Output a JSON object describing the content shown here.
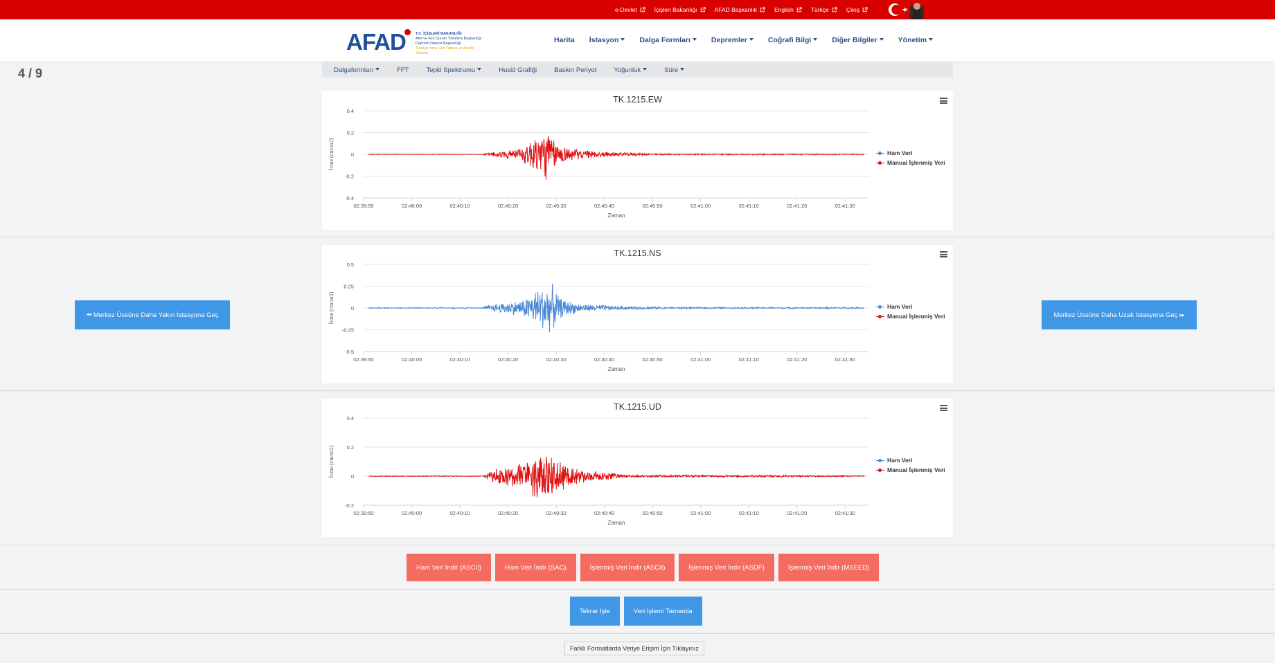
{
  "topbar": {
    "links": [
      "e-Devlet",
      "İçişleri Bakanlığı",
      "AFAD Başkanlık",
      "English",
      "Türkçe",
      "Çıkış"
    ]
  },
  "logo": {
    "name": "AFAD",
    "line1": "T.C. İÇİŞLERİ BAKANLIĞI",
    "line2": "Afet ve Acil Durum Yönetimi Başkanlığı",
    "line3": "Deprem Dairesi Başkanlığı",
    "line4": "Türkiye İvme Veri Tabanı ve Analiz Sistemi"
  },
  "nav": {
    "items": [
      {
        "label": "Harita",
        "dropdown": false
      },
      {
        "label": "İstasyon",
        "dropdown": true
      },
      {
        "label": "Dalga Formları",
        "dropdown": true
      },
      {
        "label": "Depremler",
        "dropdown": true
      },
      {
        "label": "Coğrafi Bilgi",
        "dropdown": true
      },
      {
        "label": "Diğer Bilgiler",
        "dropdown": true
      },
      {
        "label": "Yönetim",
        "dropdown": true
      }
    ]
  },
  "counter": "4 / 9",
  "subnav": {
    "items": [
      {
        "label": "Dalgaformları",
        "dropdown": true
      },
      {
        "label": "FFT",
        "dropdown": false
      },
      {
        "label": "Tepki Spektrumu",
        "dropdown": true
      },
      {
        "label": "Husid Grafiği",
        "dropdown": false
      },
      {
        "label": "Baskın Periyot",
        "dropdown": false
      },
      {
        "label": "Yoğunluk",
        "dropdown": true
      },
      {
        "label": "Süre",
        "dropdown": true
      }
    ]
  },
  "buttons": {
    "closer_station": "Merkez Üssüne Daha Yakın İstasyona Geç",
    "farther_station": "Merkez Üssüne Daha Uzak İstasyona Geç",
    "downloads": [
      "Ham Veri İndir (ASCII)",
      "Ham Veri İndir (SAC)",
      "İşlenmiş Veri İndir (ASCII)",
      "İşlenmiş Veri İndir (ASDF)",
      "İşlenmiş Veri İndir (MSEED)"
    ],
    "reprocess": "Tekrar İşle",
    "complete": "Veri İşlemi Tamamla",
    "format_link": "Farklı Formatlarda Veriye Erişim İçin Tıklayınız"
  },
  "colors": {
    "raw": "#4a87d6",
    "processed": "#e01010",
    "accent_red": "#d90000",
    "button_blue": "#3f97e6",
    "button_salmon": "#f56b5f"
  },
  "chart_data": [
    {
      "type": "line",
      "title": "TK.1215.EW",
      "xlabel": "Zaman",
      "ylabel": "İvme (cm/sn2)",
      "x_ticks": [
        "02:39:50",
        "02:40:00",
        "02:40:10",
        "02:40:20",
        "02:40:30",
        "02:40:40",
        "02:40:50",
        "02:41:00",
        "02:41:10",
        "02:41:20",
        "02:41:30"
      ],
      "y_ticks": [
        "0.4",
        "0.2",
        "0",
        "-0.2",
        "-0.4"
      ],
      "ylim": [
        -0.4,
        0.4
      ],
      "xlim_seconds": [
        0,
        105
      ],
      "grid": true,
      "legend_position": "right",
      "visible_series": "Manual İşlenmiş Veri",
      "series": [
        {
          "name": "Ham Veri",
          "color": "#4a87d6"
        },
        {
          "name": "Manual İşlenmiş Veri",
          "color": "#e01010"
        }
      ],
      "envelope": [
        [
          25,
          0.01
        ],
        [
          28,
          0.03
        ],
        [
          33,
          0.07
        ],
        [
          36,
          0.22
        ],
        [
          38,
          0.26
        ],
        [
          40,
          0.12
        ],
        [
          44,
          0.05
        ],
        [
          52,
          0.02
        ],
        [
          60,
          0.008
        ],
        [
          105,
          0.005
        ]
      ]
    },
    {
      "type": "line",
      "title": "TK.1215.NS",
      "xlabel": "Zaman",
      "ylabel": "İvme (cm/sn2)",
      "x_ticks": [
        "02:39:50",
        "02:40:00",
        "02:40:10",
        "02:40:20",
        "02:40:30",
        "02:40:40",
        "02:40:50",
        "02:41:00",
        "02:41:10",
        "02:41:20",
        "02:41:30"
      ],
      "y_ticks": [
        "0.5",
        "0.25",
        "0",
        "-0.25",
        "-0.5"
      ],
      "ylim": [
        -0.5,
        0.5
      ],
      "xlim_seconds": [
        0,
        105
      ],
      "grid": true,
      "legend_position": "right",
      "visible_series": "Ham Veri",
      "series": [
        {
          "name": "Ham Veri",
          "color": "#4a87d6"
        },
        {
          "name": "Manual İşlenmiş Veri",
          "color": "#e01010"
        }
      ],
      "envelope": [
        [
          25,
          0.02
        ],
        [
          28,
          0.06
        ],
        [
          33,
          0.1
        ],
        [
          37,
          0.28
        ],
        [
          39,
          0.3
        ],
        [
          41,
          0.12
        ],
        [
          45,
          0.05
        ],
        [
          55,
          0.02
        ],
        [
          65,
          0.01
        ],
        [
          105,
          0.01
        ]
      ]
    },
    {
      "type": "line",
      "title": "TK.1215.UD",
      "xlabel": "Zaman",
      "ylabel": "İvme (cm/sn2)",
      "x_ticks": [
        "02:39:50",
        "02:40:00",
        "02:40:10",
        "02:40:20",
        "02:40:30",
        "02:40:40",
        "02:40:50",
        "02:41:00",
        "02:41:10",
        "02:41:20",
        "02:41:30"
      ],
      "y_ticks": [
        "0.4",
        "0.2",
        "0",
        "-0.2"
      ],
      "ylim": [
        -0.2,
        0.4
      ],
      "xlim_seconds": [
        0,
        105
      ],
      "grid": true,
      "legend_position": "right",
      "visible_series": "Manual İşlenmiş Veri",
      "series": [
        {
          "name": "Ham Veri",
          "color": "#4a87d6"
        },
        {
          "name": "Manual İşlenmiş Veri",
          "color": "#e01010"
        }
      ],
      "envelope": [
        [
          25,
          0.01
        ],
        [
          27,
          0.05
        ],
        [
          32,
          0.09
        ],
        [
          36,
          0.17
        ],
        [
          38,
          0.18
        ],
        [
          41,
          0.12
        ],
        [
          45,
          0.05
        ],
        [
          55,
          0.01
        ],
        [
          105,
          0.005
        ]
      ]
    }
  ]
}
